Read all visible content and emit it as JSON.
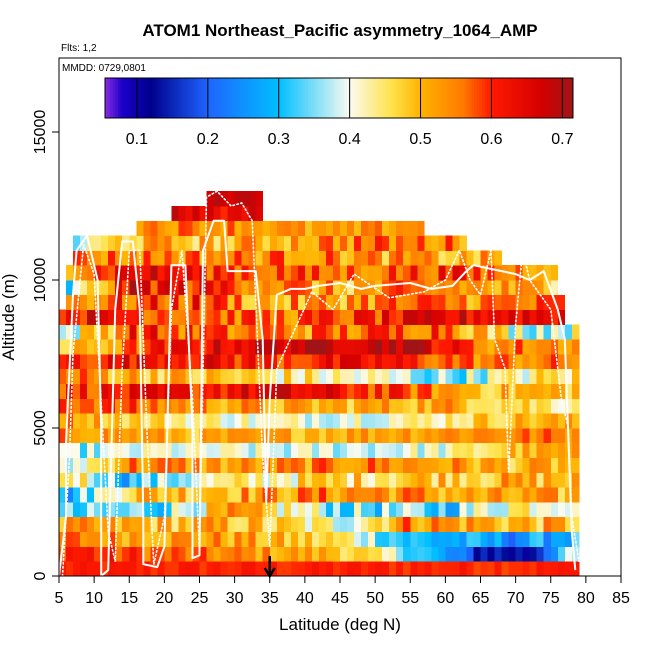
{
  "chart_data": {
    "type": "heatmap",
    "title": "ATOM1 Northeast_Pacific asymmetry_1064_AMP",
    "flights_note": "Flts: 1,2",
    "date_note": "MMDD: 0729,0801",
    "xlabel": "Latitude (deg N)",
    "ylabel": "Altitude (m)",
    "xlim": [
      5,
      85
    ],
    "ylim": [
      0,
      17500
    ],
    "x_ticks": [
      5,
      10,
      15,
      20,
      25,
      30,
      35,
      40,
      45,
      50,
      55,
      60,
      65,
      70,
      75,
      80,
      85
    ],
    "y_ticks": [
      0,
      5000,
      10000,
      15000
    ],
    "colorbar": {
      "range": [
        0.055,
        0.715
      ],
      "tick_values": [
        0.1,
        0.2,
        0.3,
        0.4,
        0.5,
        0.6,
        0.7
      ],
      "tick_labels": [
        "0.1",
        "0.2",
        "0.3",
        "0.4",
        "0.5",
        "0.6",
        "0.7"
      ],
      "color_stops": [
        {
          "v": 0.055,
          "c": "#8a2be2"
        },
        {
          "v": 0.08,
          "c": "#1a00c8"
        },
        {
          "v": 0.12,
          "c": "#00008b"
        },
        {
          "v": 0.2,
          "c": "#1e64ff"
        },
        {
          "v": 0.3,
          "c": "#00bfff"
        },
        {
          "v": 0.4,
          "c": "#fbfbf0"
        },
        {
          "v": 0.46,
          "c": "#ffe24a"
        },
        {
          "v": 0.5,
          "c": "#ffb300"
        },
        {
          "v": 0.56,
          "c": "#ff7a00"
        },
        {
          "v": 0.6,
          "c": "#ff1a00"
        },
        {
          "v": 0.67,
          "c": "#d40000"
        },
        {
          "v": 0.715,
          "c": "#a01418"
        }
      ]
    },
    "marker": {
      "type": "arrow",
      "latitude": 35
    },
    "altitude_bins_m": [
      0,
      500,
      1000,
      1500,
      2000,
      2500,
      3000,
      3500,
      4000,
      4500,
      5000,
      5500,
      6000,
      6500,
      7000,
      7500,
      8000,
      8500,
      9000,
      9500,
      10000,
      10500,
      11000,
      11500,
      12000,
      12500,
      13000
    ],
    "layers": [
      {
        "top": 500,
        "from": 5,
        "to": 79,
        "v": 0.6,
        "var": 0.02
      },
      {
        "top": 1000,
        "from": 5,
        "to": 79,
        "v": 0.52,
        "seg": [
          [
            5,
            0.62
          ],
          [
            25,
            0.55
          ],
          [
            45,
            0.5
          ],
          [
            55,
            0.35
          ],
          [
            65,
            0.15
          ],
          [
            72,
            0.12
          ],
          [
            77,
            0.35
          ]
        ],
        "var": 0.05
      },
      {
        "top": 1500,
        "from": 5,
        "to": 79,
        "v": 0.5,
        "seg": [
          [
            5,
            0.55
          ],
          [
            30,
            0.52
          ],
          [
            45,
            0.45
          ],
          [
            55,
            0.3
          ],
          [
            70,
            0.25
          ],
          [
            78,
            0.3
          ]
        ],
        "var": 0.06
      },
      {
        "top": 2000,
        "from": 5,
        "to": 79,
        "v": 0.52,
        "seg": [
          [
            5,
            0.5
          ],
          [
            30,
            0.5
          ],
          [
            45,
            0.4
          ],
          [
            55,
            0.55
          ],
          [
            70,
            0.5
          ]
        ],
        "var": 0.07
      },
      {
        "top": 2500,
        "from": 5,
        "to": 79,
        "v": 0.45,
        "seg": [
          [
            5,
            0.3
          ],
          [
            20,
            0.35
          ],
          [
            30,
            0.5
          ],
          [
            45,
            0.35
          ],
          [
            60,
            0.32
          ],
          [
            70,
            0.45
          ]
        ],
        "var": 0.08
      },
      {
        "top": 3000,
        "from": 5,
        "to": 79,
        "v": 0.52,
        "seg": [
          [
            5,
            0.25
          ],
          [
            15,
            0.5
          ],
          [
            30,
            0.52
          ],
          [
            50,
            0.55
          ],
          [
            65,
            0.5
          ]
        ],
        "var": 0.07
      },
      {
        "top": 3500,
        "from": 5,
        "to": 79,
        "v": 0.5,
        "seg": [
          [
            5,
            0.5
          ],
          [
            15,
            0.3
          ],
          [
            25,
            0.4
          ],
          [
            40,
            0.45
          ],
          [
            60,
            0.5
          ]
        ],
        "var": 0.07
      },
      {
        "top": 4000,
        "from": 5,
        "to": 79,
        "v": 0.52,
        "seg": [
          [
            5,
            0.35
          ],
          [
            15,
            0.55
          ],
          [
            30,
            0.52
          ],
          [
            50,
            0.55
          ],
          [
            70,
            0.5
          ]
        ],
        "var": 0.06
      },
      {
        "top": 4500,
        "from": 5,
        "to": 79,
        "v": 0.4,
        "seg": [
          [
            5,
            0.35
          ],
          [
            20,
            0.4
          ],
          [
            40,
            0.38
          ],
          [
            60,
            0.4
          ],
          [
            70,
            0.5
          ]
        ],
        "var": 0.05
      },
      {
        "top": 5000,
        "from": 5,
        "to": 79,
        "v": 0.52,
        "seg": [
          [
            5,
            0.55
          ],
          [
            25,
            0.5
          ],
          [
            45,
            0.52
          ],
          [
            65,
            0.55
          ]
        ],
        "var": 0.05
      },
      {
        "top": 5500,
        "from": 5,
        "to": 79,
        "v": 0.42,
        "seg": [
          [
            5,
            0.55
          ],
          [
            20,
            0.45
          ],
          [
            35,
            0.4
          ],
          [
            55,
            0.42
          ],
          [
            70,
            0.5
          ]
        ],
        "var": 0.05
      },
      {
        "top": 6000,
        "from": 5,
        "to": 79,
        "v": 0.52,
        "seg": [
          [
            5,
            0.6
          ],
          [
            20,
            0.55
          ],
          [
            40,
            0.5
          ],
          [
            60,
            0.52
          ],
          [
            75,
            0.45
          ]
        ],
        "var": 0.06
      },
      {
        "top": 6500,
        "from": 5,
        "to": 79,
        "v": 0.58,
        "seg": [
          [
            5,
            0.6
          ],
          [
            25,
            0.62
          ],
          [
            35,
            0.65
          ],
          [
            50,
            0.6
          ],
          [
            65,
            0.5
          ]
        ],
        "var": 0.06
      },
      {
        "top": 7000,
        "from": 5,
        "to": 79,
        "v": 0.45,
        "seg": [
          [
            5,
            0.55
          ],
          [
            20,
            0.5
          ],
          [
            35,
            0.45
          ],
          [
            50,
            0.4
          ],
          [
            60,
            0.35
          ],
          [
            75,
            0.45
          ]
        ],
        "var": 0.07
      },
      {
        "top": 7500,
        "from": 5,
        "to": 79,
        "v": 0.6,
        "seg": [
          [
            5,
            0.6
          ],
          [
            20,
            0.65
          ],
          [
            35,
            0.6
          ],
          [
            50,
            0.62
          ],
          [
            65,
            0.55
          ]
        ],
        "var": 0.06
      },
      {
        "top": 8000,
        "from": 5,
        "to": 79,
        "v": 0.68,
        "seg": [
          [
            5,
            0.45
          ],
          [
            20,
            0.6
          ],
          [
            35,
            0.68
          ],
          [
            55,
            0.7
          ],
          [
            65,
            0.55
          ]
        ],
        "var": 0.06
      },
      {
        "top": 8500,
        "from": 5,
        "to": 79,
        "v": 0.55,
        "seg": [
          [
            5,
            0.35
          ],
          [
            15,
            0.6
          ],
          [
            30,
            0.55
          ],
          [
            45,
            0.55
          ],
          [
            60,
            0.6
          ],
          [
            70,
            0.4
          ]
        ],
        "var": 0.08
      },
      {
        "top": 9000,
        "from": 5,
        "to": 77,
        "v": 0.62,
        "seg": [
          [
            5,
            0.65
          ],
          [
            20,
            0.6
          ],
          [
            35,
            0.55
          ],
          [
            50,
            0.6
          ],
          [
            65,
            0.65
          ]
        ],
        "var": 0.07
      },
      {
        "top": 9500,
        "from": 6,
        "to": 77,
        "v": 0.56,
        "seg": [
          [
            6,
            0.55
          ],
          [
            25,
            0.6
          ],
          [
            35,
            0.5
          ],
          [
            50,
            0.55
          ],
          [
            70,
            0.55
          ]
        ],
        "var": 0.08
      },
      {
        "top": 10000,
        "from": 6,
        "to": 76,
        "v": 0.55,
        "seg": [
          [
            6,
            0.3
          ],
          [
            15,
            0.65
          ],
          [
            30,
            0.6
          ],
          [
            45,
            0.5
          ],
          [
            60,
            0.55
          ],
          [
            70,
            0.5
          ]
        ],
        "var": 0.08
      },
      {
        "top": 10500,
        "from": 6,
        "to": 76,
        "v": 0.62,
        "seg": [
          [
            6,
            0.55
          ],
          [
            15,
            0.65
          ],
          [
            30,
            0.6
          ],
          [
            45,
            0.55
          ],
          [
            60,
            0.6
          ],
          [
            70,
            0.55
          ]
        ],
        "var": 0.07
      },
      {
        "top": 11000,
        "from": 7,
        "to": 68,
        "v": 0.56,
        "seg": [
          [
            7,
            0.55
          ],
          [
            20,
            0.55
          ],
          [
            40,
            0.55
          ],
          [
            60,
            0.5
          ]
        ],
        "var": 0.07
      },
      {
        "top": 11500,
        "from": 7,
        "to": 63,
        "v": 0.52,
        "seg": [
          [
            7,
            0.35
          ],
          [
            15,
            0.5
          ],
          [
            30,
            0.5
          ],
          [
            45,
            0.55
          ],
          [
            60,
            0.55
          ]
        ],
        "var": 0.07
      },
      {
        "top": 12000,
        "from": 16,
        "to": 57,
        "v": 0.5,
        "seg": [
          [
            16,
            0.55
          ],
          [
            30,
            0.55
          ],
          [
            45,
            0.5
          ],
          [
            55,
            0.55
          ]
        ],
        "var": 0.05
      },
      {
        "top": 12500,
        "from": 21,
        "to": 34,
        "v": 0.65,
        "seg": [
          [
            21,
            0.68
          ],
          [
            28,
            0.62
          ],
          [
            33,
            0.65
          ]
        ],
        "var": 0.04
      },
      {
        "top": 13000,
        "from": 26,
        "to": 34,
        "v": 0.68,
        "var": 0.02
      }
    ],
    "flight_track_solid": [
      [
        5,
        0
      ],
      [
        6,
        2000
      ],
      [
        6,
        4500
      ],
      [
        7,
        9500
      ],
      [
        7.5,
        11000
      ],
      [
        9,
        11500
      ],
      [
        10.5,
        10000
      ],
      [
        11,
        5000
      ],
      [
        11,
        0
      ],
      [
        12,
        200
      ],
      [
        13,
        9000
      ],
      [
        14,
        11300
      ],
      [
        15.5,
        11300
      ],
      [
        16.5,
        9000
      ],
      [
        17,
        2000
      ],
      [
        17,
        400
      ],
      [
        19,
        300
      ],
      [
        20,
        1000
      ],
      [
        21,
        10500
      ],
      [
        23,
        10500
      ],
      [
        24,
        5000
      ],
      [
        24,
        600
      ],
      [
        25,
        700
      ],
      [
        25.5,
        11000
      ],
      [
        27,
        12000
      ],
      [
        28.5,
        12000
      ],
      [
        29,
        10300
      ],
      [
        33,
        10300
      ],
      [
        34,
        8000
      ],
      [
        34.5,
        2500
      ],
      [
        35,
        6000
      ],
      [
        36,
        9500
      ],
      [
        38,
        9700
      ],
      [
        40,
        9700
      ],
      [
        42,
        9800
      ],
      [
        45,
        9900
      ],
      [
        48,
        9700
      ],
      [
        50,
        9800
      ],
      [
        55,
        9900
      ],
      [
        58,
        9700
      ],
      [
        61,
        9800
      ],
      [
        63,
        10300
      ],
      [
        64,
        10500
      ],
      [
        70,
        10200
      ],
      [
        72,
        10000
      ],
      [
        74,
        10300
      ],
      [
        76,
        9000
      ],
      [
        77,
        8000
      ],
      [
        78,
        1500
      ],
      [
        78.5,
        200
      ]
    ],
    "flight_track_dotted": [
      [
        5.5,
        0
      ],
      [
        6.5,
        4000
      ],
      [
        7,
        7500
      ],
      [
        8.5,
        11200
      ],
      [
        10,
        10200
      ],
      [
        12,
        1500
      ],
      [
        13,
        500
      ],
      [
        14,
        7000
      ],
      [
        15,
        11000
      ],
      [
        16.5,
        11000
      ],
      [
        17.5,
        5000
      ],
      [
        18.5,
        400
      ],
      [
        20,
        2000
      ],
      [
        21,
        9000
      ],
      [
        22.5,
        11000
      ],
      [
        24,
        6000
      ],
      [
        25,
        800
      ],
      [
        26,
        12800
      ],
      [
        27.5,
        13000
      ],
      [
        29.5,
        12500
      ],
      [
        31,
        12600
      ],
      [
        32.5,
        12000
      ],
      [
        34,
        4000
      ],
      [
        35,
        1000
      ],
      [
        36,
        7000
      ],
      [
        41,
        9600
      ],
      [
        44,
        9000
      ],
      [
        47,
        10200
      ],
      [
        52,
        9400
      ],
      [
        57,
        9600
      ],
      [
        60,
        10000
      ],
      [
        62,
        11000
      ],
      [
        63.5,
        10000
      ],
      [
        65,
        9500
      ],
      [
        66.5,
        11000
      ],
      [
        67,
        8000
      ],
      [
        68.5,
        7000
      ],
      [
        69,
        3500
      ],
      [
        70,
        8500
      ],
      [
        71,
        11000
      ],
      [
        72,
        10000
      ],
      [
        75,
        9000
      ],
      [
        76.5,
        6000
      ],
      [
        77.5,
        5000
      ],
      [
        78,
        2000
      ],
      [
        79,
        500
      ]
    ]
  }
}
